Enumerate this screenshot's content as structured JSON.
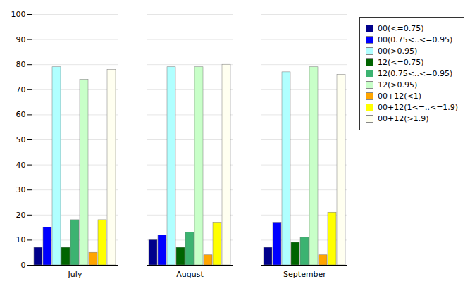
{
  "chart_data": {
    "type": "bar",
    "categories": [
      "July",
      "August",
      "September"
    ],
    "series": [
      {
        "name": "00(<=0.75)",
        "color": "#00008B",
        "values": [
          7,
          10,
          7
        ]
      },
      {
        "name": "00(0.75<..<=0.95)",
        "color": "#0000FF",
        "values": [
          15,
          12,
          17
        ]
      },
      {
        "name": "00(>0.95)",
        "color": "#B0FFFF",
        "values": [
          79,
          79,
          77
        ]
      },
      {
        "name": "12(<=0.75)",
        "color": "#006400",
        "values": [
          7,
          7,
          9
        ]
      },
      {
        "name": "12(0.75<..<=0.95)",
        "color": "#3CB371",
        "values": [
          18,
          13,
          11
        ]
      },
      {
        "name": "12(>0.95)",
        "color": "#C8FFC8",
        "values": [
          74,
          79,
          79
        ]
      },
      {
        "name": "00+12(<1)",
        "color": "#FFA500",
        "values": [
          5,
          4,
          4
        ]
      },
      {
        "name": "00+12(1<=..<=1.9)",
        "color": "#FFFF00",
        "values": [
          18,
          17,
          21
        ]
      },
      {
        "name": "00+12(>1.9)",
        "color": "#FFFFF0",
        "values": [
          78,
          80,
          76
        ]
      }
    ],
    "ylim": [
      0,
      100
    ],
    "yticks": [
      0,
      10,
      20,
      30,
      40,
      50,
      60,
      70,
      80,
      90,
      100
    ],
    "grid": true,
    "legend": "right"
  }
}
